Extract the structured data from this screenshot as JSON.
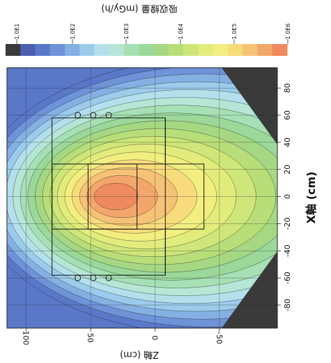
{
  "chart_data": {
    "type": "heatmap",
    "title": "吸収線量 (mGy/h)",
    "colorbar": {
      "ticks": [
        "1.0E1",
        "1.0E2",
        "1.0E3",
        "1.0E4",
        "1.0E5",
        "1.0E6"
      ],
      "bin_colors": [
        "#3a3a3a",
        "#4a5fb0",
        "#5a78c8",
        "#6f93d8",
        "#85b0e3",
        "#9ccbeb",
        "#b4e0ec",
        "#b6e6d6",
        "#a6e0b4",
        "#9bd89a",
        "#a6d884",
        "#b8de7a",
        "#cfe67a",
        "#e2ec7c",
        "#f2ef80",
        "#f8dc7c",
        "#f6c276",
        "#f3a66c",
        "#ef8a5e"
      ]
    },
    "xlabel": "X軸 (cm)",
    "ylabel": "Z軸 (cm)",
    "x_ticks": [
      80,
      60,
      40,
      20,
      0,
      -20,
      -40,
      -60,
      -80
    ],
    "z_ticks": [
      100,
      50,
      0,
      -50
    ],
    "xlim": [
      95,
      -97
    ],
    "zlim": [
      115,
      -95
    ],
    "peak": {
      "x": 0,
      "z": 35
    },
    "grid": true
  }
}
